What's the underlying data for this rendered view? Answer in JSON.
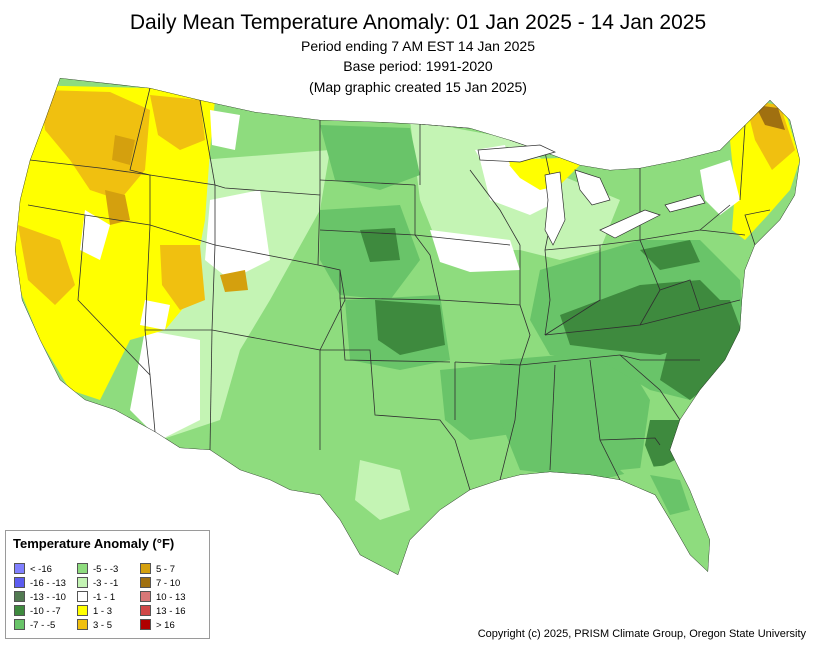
{
  "title": "Daily Mean Temperature Anomaly: 01 Jan 2025 - 14 Jan 2025",
  "subtitle_lines": [
    "Period ending 7 AM EST 14 Jan 2025",
    "Base period: 1991-2020",
    "(Map graphic created 15 Jan 2025)"
  ],
  "legend": {
    "title": "Temperature Anomaly (°F)",
    "items": [
      {
        "label": "< -16",
        "color": "#8080ff"
      },
      {
        "label": "-16 - -13",
        "color": "#5c5cf0"
      },
      {
        "label": "-13 - -10",
        "color": "#527a52"
      },
      {
        "label": "-10 - -7",
        "color": "#3e8a3e"
      },
      {
        "label": "-7 - -5",
        "color": "#69c469"
      },
      {
        "label": "-5 - -3",
        "color": "#8edc7e"
      },
      {
        "label": "-3 - -1",
        "color": "#c4f4b4"
      },
      {
        "label": "-1 - 1",
        "color": "#ffffff"
      },
      {
        "label": "1 - 3",
        "color": "#ffff00"
      },
      {
        "label": "3 - 5",
        "color": "#f0c010"
      },
      {
        "label": "5 - 7",
        "color": "#d4a00e"
      },
      {
        "label": "7 - 10",
        "color": "#a07010"
      },
      {
        "label": "10 - 13",
        "color": "#d87878"
      },
      {
        "label": "13 - 16",
        "color": "#d04848"
      },
      {
        "label": "> 16",
        "color": "#b00000"
      }
    ]
  },
  "copyright": "Copyright (c) 2025, PRISM Climate Group, Oregon State University"
}
